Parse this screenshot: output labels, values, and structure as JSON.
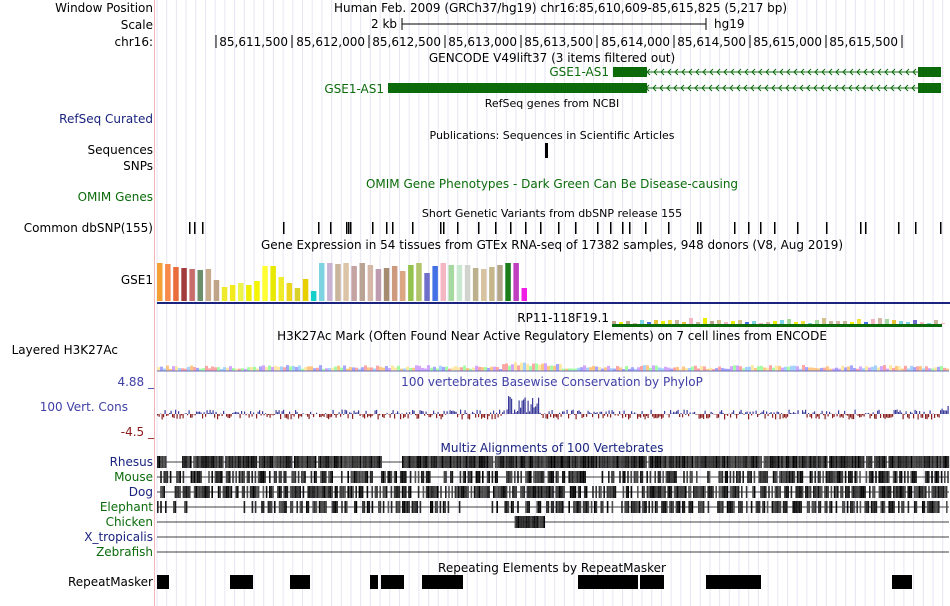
{
  "header": {
    "window_position_label": "Window Position",
    "window_position_value": "Human Feb. 2009 (GRCh37/hg19)   chr16:85,610,609-85,615,825 (5,217 bp)",
    "scale_label": "Scale",
    "scale_value": "2 kb",
    "scale_assembly": "hg19",
    "chrom_label": "chr16:",
    "ticks": [
      "85,611,500",
      "85,612,000",
      "85,612,500",
      "85,613,000",
      "85,613,500",
      "85,614,000",
      "85,614,500",
      "85,615,000",
      "85,615,500"
    ]
  },
  "tracks": {
    "gencode": {
      "title": "GENCODE V49lift37 (3 items filtered out)",
      "transcripts": [
        "GSE1-AS1",
        "GSE1-AS1"
      ]
    },
    "refseq": {
      "label": "RefSeq Curated",
      "title": "RefSeq genes from NCBI"
    },
    "publications": {
      "title": "Publications: Sequences in Scientific Articles"
    },
    "sequences": {
      "label": "Sequences"
    },
    "snps": {
      "label": "SNPs"
    },
    "omim": {
      "label": "OMIM Genes",
      "title": "OMIM Gene Phenotypes - Dark Green Can Be Disease-causing"
    },
    "dbsnp": {
      "label": "Common dbSNP(155)",
      "title": "Short Genetic Variants from dbSNP release 155"
    },
    "gtex": {
      "label": "GSE1",
      "title": "Gene Expression in 54 tissues from GTEx RNA-seq of 17382 samples, 948 donors (V8, Aug 2019)",
      "gene2": "RP11-118F19.1"
    },
    "h3k27ac": {
      "label": "Layered H3K27Ac",
      "title": "H3K27Ac Mark (Often Found Near Active Regulatory Elements) on 7 cell lines from ENCODE"
    },
    "phylop": {
      "label": "100 Vert. Cons",
      "title": "100 vertebrates Basewise Conservation by PhyloP",
      "max": "4.88 _",
      "min": "-4.5 _"
    },
    "multiz": {
      "title": "Multiz Alignments of 100 Vertebrates",
      "species": [
        "Rhesus",
        "Mouse",
        "Dog",
        "Elephant",
        "Chicken",
        "X_tropicalis",
        "Zebrafish"
      ]
    },
    "repeatmasker": {
      "label": "RepeatMasker",
      "title": "Repeating Elements by RepeatMasker"
    }
  },
  "colors": {
    "gene_green": "#0b6b0b",
    "navy_label": "#1a237e",
    "gtex_axis": "#1a237e"
  }
}
